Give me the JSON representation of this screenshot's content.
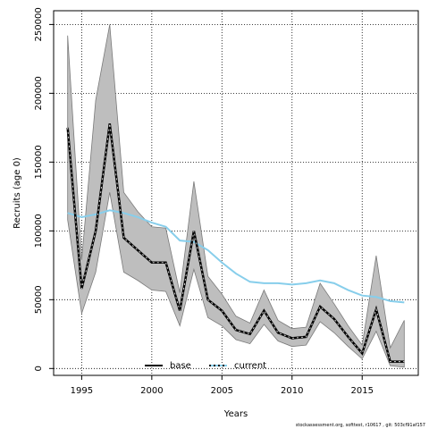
{
  "chart_data": {
    "type": "line",
    "xlabel": "Years",
    "ylabel": "Recruits (age 0)",
    "xlim": [
      1993,
      2019
    ],
    "ylim": [
      -5000,
      260000
    ],
    "x_ticks": [
      1995,
      2000,
      2005,
      2010,
      2015
    ],
    "y_ticks": [
      0,
      50000,
      100000,
      150000,
      200000,
      250000
    ],
    "grid": true,
    "legend_placement": "bottom-center",
    "x": [
      1994,
      1995,
      1996,
      1997,
      1998,
      1999,
      2000,
      2001,
      2002,
      2003,
      2004,
      2005,
      2006,
      2007,
      2008,
      2009,
      2010,
      2011,
      2012,
      2013,
      2014,
      2015,
      2016,
      2017,
      2018
    ],
    "series": [
      {
        "name": "base",
        "color": "#000000",
        "values": [
          175000,
          58000,
          100000,
          178000,
          95000,
          86000,
          77000,
          77000,
          42000,
          100000,
          50000,
          42000,
          28000,
          25000,
          42000,
          26000,
          22000,
          23000,
          45000,
          36000,
          23000,
          11000,
          43000,
          5000,
          5000
        ],
        "lower": [
          108000,
          40000,
          70000,
          128000,
          70000,
          64000,
          57000,
          56000,
          31000,
          72000,
          37000,
          31000,
          21000,
          18000,
          32000,
          20000,
          16000,
          17000,
          34000,
          26000,
          16000,
          7000,
          27000,
          2000,
          1000
        ],
        "upper": [
          242000,
          79000,
          195000,
          250000,
          128000,
          114000,
          103000,
          102000,
          55000,
          136000,
          67000,
          54000,
          38000,
          33000,
          57000,
          35000,
          29000,
          30000,
          62000,
          47000,
          31000,
          17000,
          82000,
          15000,
          35000
        ]
      },
      {
        "name": "current",
        "color": "#87ceeb",
        "values": [
          113000,
          110000,
          112000,
          115000,
          113000,
          110000,
          106000,
          103000,
          93000,
          92000,
          86000,
          77000,
          69000,
          63000,
          62000,
          62000,
          61000,
          62000,
          64000,
          62000,
          57000,
          53000,
          52000,
          49000,
          48000
        ]
      }
    ]
  },
  "footer": "stockassessment.org, softtest, r10617 , git: 503cf91af157"
}
